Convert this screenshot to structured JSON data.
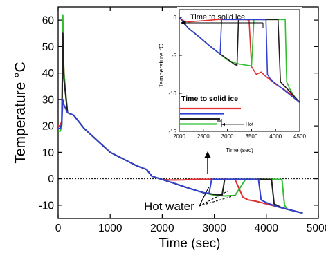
{
  "chart_data": [
    {
      "type": "line",
      "title": "",
      "xlabel": "Time (sec)",
      "ylabel": "Temperature °C",
      "xlim": [
        0,
        5000
      ],
      "ylim": [
        -15,
        65
      ],
      "xticks": [
        0,
        1000,
        2000,
        3000,
        4000,
        5000
      ],
      "yticks": [
        -10,
        0,
        10,
        20,
        30,
        40,
        50,
        60
      ],
      "reference_line_y": 0,
      "annotation": "Hot water",
      "series": [
        {
          "color": "#e03030",
          "x": [
            0,
            40,
            70,
            90,
            120,
            180,
            300,
            500,
            1000,
            1500,
            1700,
            1800,
            2000,
            2200,
            2400,
            2600,
            2800,
            3000,
            3200,
            3400,
            3550,
            3650,
            3800,
            4000,
            4200,
            4400,
            4600,
            4700
          ],
          "y": [
            20,
            20,
            22,
            48,
            38,
            25,
            24,
            19,
            10,
            5,
            3.5,
            1,
            -0.3,
            -0.5,
            -0.4,
            -0.2,
            -0.2,
            -0.2,
            -0.2,
            -0.3,
            -7,
            -8,
            -8.5,
            -9.5,
            -10.5,
            -11.5,
            -12.5,
            -13
          ]
        },
        {
          "color": "#30c030",
          "x": [
            0,
            40,
            70,
            90,
            110,
            180,
            300,
            500,
            1000,
            1500,
            1700,
            1800,
            2000,
            2200,
            2500,
            2800,
            3000,
            3200,
            3400,
            3600,
            3800,
            4000,
            4200,
            4300,
            4350,
            4400,
            4600,
            4700
          ],
          "y": [
            18,
            18,
            20,
            62,
            40,
            25,
            24,
            19,
            10,
            5,
            3.5,
            1,
            -0.3,
            -1.5,
            -3.5,
            -5.3,
            -6.2,
            -6.5,
            -6.3,
            -0.2,
            -0.2,
            -0.2,
            -0.2,
            -0.3,
            -10,
            -11.5,
            -12.5,
            -13
          ]
        },
        {
          "color": "#202020",
          "x": [
            0,
            40,
            70,
            90,
            110,
            180,
            300,
            500,
            1000,
            1500,
            1700,
            1800,
            2000,
            2200,
            2500,
            2800,
            3000,
            3150,
            3200,
            3400,
            3600,
            3800,
            4000,
            4100,
            4150,
            4300,
            4500,
            4700
          ],
          "y": [
            19,
            19,
            21,
            55,
            38,
            25,
            24,
            19,
            10,
            5,
            3.5,
            1,
            -0.3,
            -1.5,
            -3.5,
            -5.3,
            -5.9,
            -6.2,
            -0.2,
            -0.2,
            -0.2,
            -0.2,
            -0.2,
            -0.3,
            -9.5,
            -11,
            -12,
            -13
          ]
        },
        {
          "color": "#3040d0",
          "x": [
            0,
            40,
            70,
            90,
            110,
            180,
            300,
            500,
            1000,
            1500,
            1700,
            1800,
            2000,
            2200,
            2500,
            2800,
            2900,
            2950,
            3100,
            3400,
            3700,
            3850,
            3900,
            4000,
            4200,
            4400,
            4600,
            4700
          ],
          "y": [
            19,
            19,
            21,
            30,
            28,
            25,
            24,
            19,
            10,
            5,
            3.5,
            1,
            -0.3,
            -1.5,
            -3.5,
            -5.3,
            -5.5,
            -0.2,
            -0.2,
            -0.2,
            -0.2,
            -0.3,
            -8,
            -9,
            -10.5,
            -11.5,
            -12.5,
            -13
          ]
        }
      ]
    },
    {
      "type": "line",
      "title": "",
      "xlabel": "Time (sec)",
      "ylabel": "Temperature °C",
      "xlim": [
        2000,
        4500
      ],
      "ylim": [
        -15,
        1
      ],
      "xticks": [
        2000,
        2500,
        3000,
        3500,
        4000,
        4500
      ],
      "yticks": [
        -15,
        -10,
        -5,
        0
      ],
      "annotation": "Time to solid ice",
      "legend_title": "Time to solid ice",
      "legend_label": "Hot",
      "series": [
        {
          "color": "#e03030",
          "x": [
            2000,
            2100,
            2200,
            2400,
            2600,
            2800,
            3000,
            3200,
            3400,
            3450,
            3500,
            3600,
            3700,
            3800,
            4000,
            4200,
            4400,
            4500
          ],
          "y": [
            0,
            -0.5,
            -0.6,
            -0.5,
            -0.4,
            -0.3,
            -0.3,
            -0.3,
            -0.3,
            -0.4,
            -6.5,
            -7.5,
            -7.2,
            -7.8,
            -8.8,
            -9.6,
            -10.5,
            -11.2
          ]
        },
        {
          "color": "#30c030",
          "x": [
            2000,
            2100,
            2200,
            2400,
            2600,
            2800,
            3000,
            3200,
            3400,
            3500,
            3550,
            3700,
            4000,
            4200,
            4230,
            4300,
            4400,
            4500
          ],
          "y": [
            0,
            -0.8,
            -1.5,
            -2.5,
            -3.6,
            -4.6,
            -5.6,
            -6.1,
            -6.3,
            -6.4,
            -0.3,
            -0.3,
            -0.3,
            -0.3,
            -8.5,
            -9.5,
            -10.5,
            -11.2
          ]
        },
        {
          "color": "#202020",
          "x": [
            2000,
            2100,
            2200,
            2400,
            2600,
            2800,
            3000,
            3150,
            3200,
            3230,
            3400,
            3700,
            3900,
            4050,
            4100,
            4300,
            4400,
            4500
          ],
          "y": [
            0,
            -0.8,
            -1.5,
            -2.5,
            -3.6,
            -4.6,
            -5.5,
            -6.2,
            -6.3,
            -0.3,
            -0.3,
            -0.3,
            -0.3,
            -0.3,
            -8.5,
            -9.8,
            -10.5,
            -11.2
          ]
        },
        {
          "color": "#3040d0",
          "x": [
            2000,
            2100,
            2200,
            2400,
            2600,
            2800,
            2850,
            2880,
            3000,
            3300,
            3600,
            3800,
            3830,
            3900,
            4100,
            4300,
            4400,
            4500
          ],
          "y": [
            0,
            -0.8,
            -1.5,
            -2.5,
            -3.6,
            -4.6,
            -4.8,
            -0.3,
            -0.3,
            -0.3,
            -0.3,
            -0.3,
            -7.5,
            -8.2,
            -9.2,
            -10.2,
            -10.7,
            -11.2
          ]
        }
      ]
    }
  ]
}
